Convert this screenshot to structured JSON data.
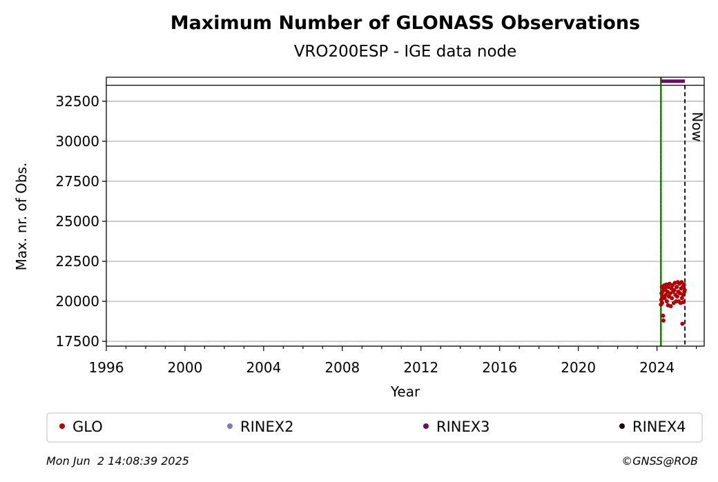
{
  "chart_data": {
    "type": "scatter",
    "title": "Maximum Number of GLONASS Observations",
    "subtitle": "VRO200ESP - IGE data node",
    "xlabel": "Year",
    "ylabel": "Max. nr. of Obs.",
    "xlim": [
      1996,
      2026.4
    ],
    "ylim": [
      17200,
      34000
    ],
    "x_ticks": [
      1996,
      2000,
      2004,
      2008,
      2012,
      2016,
      2020,
      2024
    ],
    "y_ticks": [
      17500,
      20000,
      22500,
      25000,
      27500,
      30000,
      32500
    ],
    "grid": "horizontal",
    "legend_position": "bottom",
    "legend": [
      {
        "label": "GLO",
        "color": "#b00000"
      },
      {
        "label": "RINEX2",
        "color": "#7b7bbf"
      },
      {
        "label": "RINEX3",
        "color": "#6a0a6a"
      },
      {
        "label": "RINEX4",
        "color": "#1a0010"
      }
    ],
    "upper_band_value": 33500,
    "vertical_markers": [
      {
        "x": 2024.2,
        "style": "solid-green-dotted-red"
      },
      {
        "x": 2025.42,
        "label": "Now",
        "style": "dashed-black"
      }
    ],
    "rinex3_period": {
      "start": 2024.2,
      "end": 2025.42,
      "value": 33750
    },
    "glo_series": {
      "name": "GLO",
      "points": [
        [
          2024.2,
          19800
        ],
        [
          2024.22,
          20100
        ],
        [
          2024.23,
          20500
        ],
        [
          2024.25,
          20900
        ],
        [
          2024.26,
          19900
        ],
        [
          2024.28,
          20600
        ],
        [
          2024.3,
          20300
        ],
        [
          2024.31,
          19100
        ],
        [
          2024.33,
          18800
        ],
        [
          2024.35,
          20700
        ],
        [
          2024.37,
          21000
        ],
        [
          2024.39,
          20200
        ],
        [
          2024.42,
          20800
        ],
        [
          2024.45,
          20400
        ],
        [
          2024.48,
          21050
        ],
        [
          2024.5,
          20000
        ],
        [
          2024.53,
          20600
        ],
        [
          2024.56,
          19750
        ],
        [
          2024.58,
          20900
        ],
        [
          2024.61,
          20300
        ],
        [
          2024.64,
          21100
        ],
        [
          2024.67,
          20500
        ],
        [
          2024.7,
          19700
        ],
        [
          2024.73,
          20800
        ],
        [
          2024.76,
          20200
        ],
        [
          2024.79,
          21000
        ],
        [
          2024.82,
          20600
        ],
        [
          2024.85,
          19900
        ],
        [
          2024.88,
          20700
        ],
        [
          2024.91,
          21150
        ],
        [
          2024.94,
          20400
        ],
        [
          2024.97,
          20000
        ],
        [
          2025.0,
          20900
        ],
        [
          2025.03,
          20300
        ],
        [
          2025.06,
          21200
        ],
        [
          2025.08,
          20600
        ],
        [
          2025.11,
          20000
        ],
        [
          2025.14,
          21100
        ],
        [
          2025.17,
          20500
        ],
        [
          2025.2,
          19900
        ],
        [
          2025.22,
          20800
        ],
        [
          2025.25,
          21200
        ],
        [
          2025.27,
          20200
        ],
        [
          2025.29,
          18600
        ],
        [
          2025.31,
          20900
        ],
        [
          2025.33,
          20400
        ],
        [
          2025.35,
          19950
        ],
        [
          2025.37,
          21050
        ],
        [
          2025.39,
          20600
        ],
        [
          2025.41,
          20700
        ]
      ]
    }
  },
  "footer": {
    "date": "Mon Jun  2 14:08:39 2025",
    "credit": "©GNSS@ROB"
  }
}
